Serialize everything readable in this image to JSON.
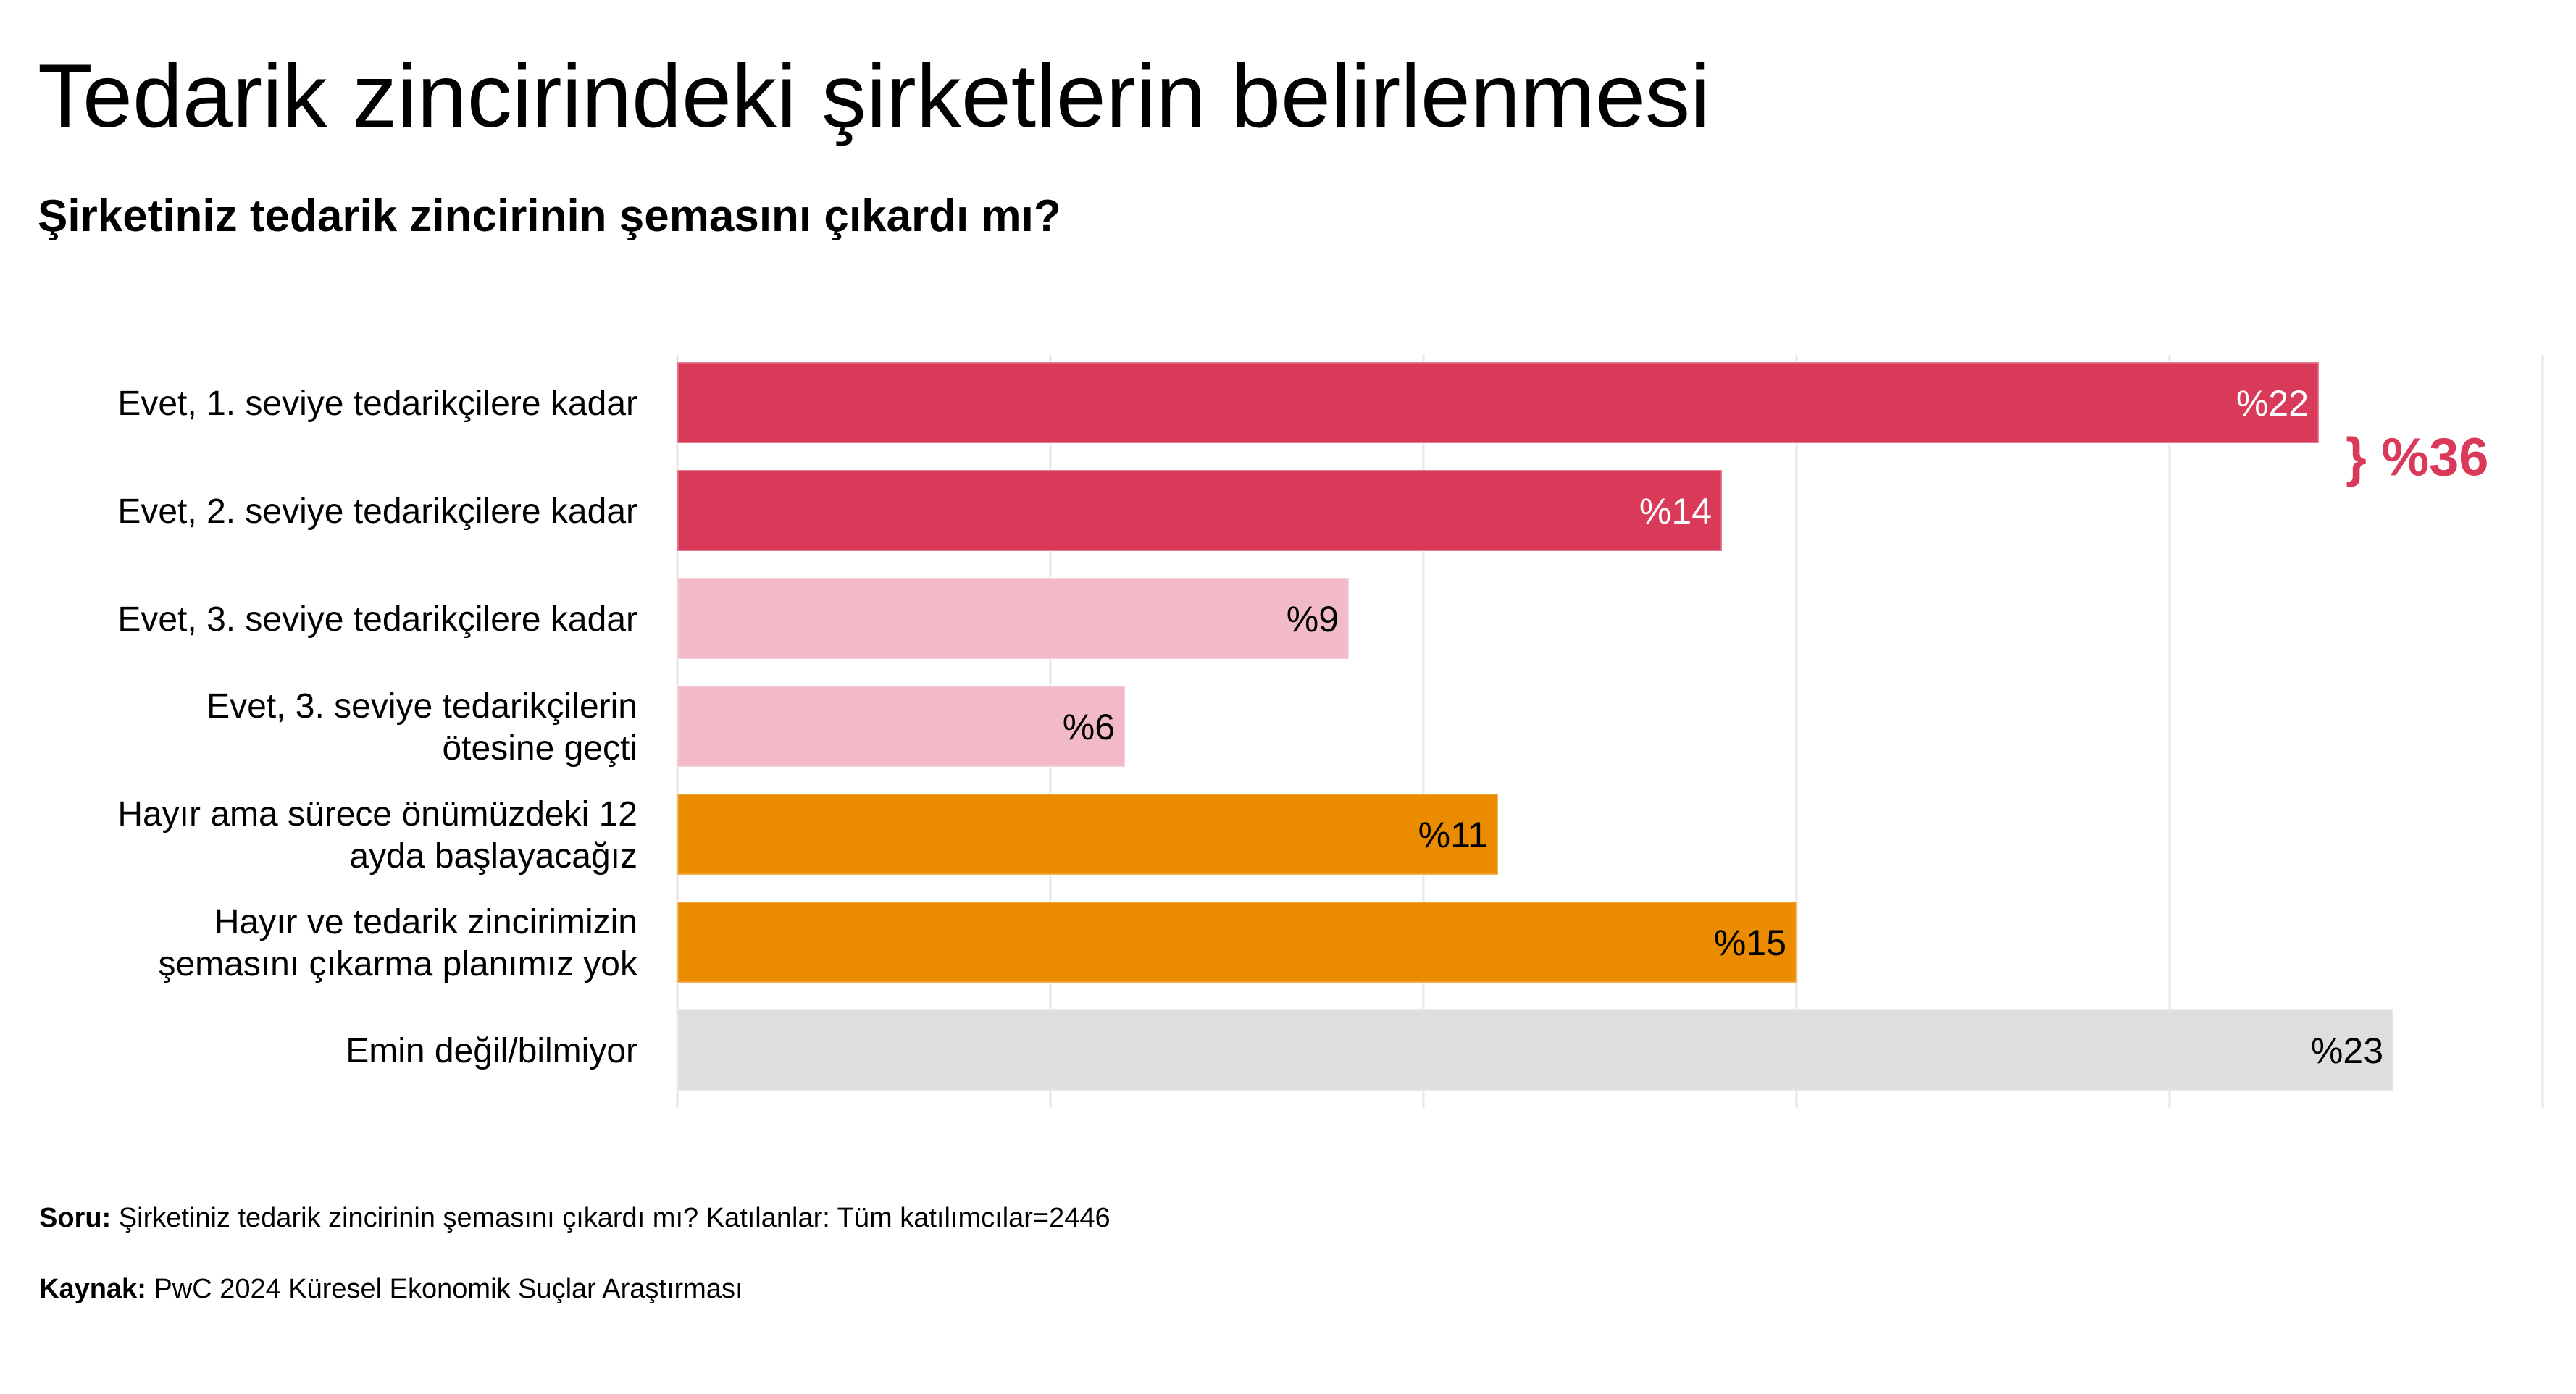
{
  "title": "Tedarik zincirindeki şirketlerin belirlenmesi",
  "subtitle": "Şirketiniz tedarik zincirinin şemasını çıkardı mı?",
  "colors": {
    "dark_pink": "#d93a59",
    "light_pink": "#f2bac6",
    "orange": "#eb8c00",
    "grey": "#dedede",
    "grid": "#e6e6e6",
    "accent_text": "#d93a59"
  },
  "chart_data": {
    "type": "bar",
    "orientation": "horizontal",
    "categories": [
      [
        "Evet, 1. seviye tedarikçilere kadar"
      ],
      [
        "Evet, 2. seviye tedarikçilere kadar"
      ],
      [
        "Evet, 3. seviye tedarikçilere kadar"
      ],
      [
        "Evet, 3. seviye tedarikçilerin",
        "ötesine geçti"
      ],
      [
        "Hayır ama sürece önümüzdeki 12",
        "ayda başlayacağız"
      ],
      [
        "Hayır ve tedarik zincirimizin",
        "şemasını çıkarma planımız yok"
      ],
      [
        "Emin değil/bilmiyor"
      ]
    ],
    "values": [
      22,
      14,
      9,
      6,
      11,
      15,
      23
    ],
    "value_labels": [
      "%22",
      "%14",
      "%9",
      "%6",
      "%11",
      "%15",
      "%23"
    ],
    "bar_colors": [
      "dark_pink",
      "dark_pink",
      "light_pink",
      "light_pink",
      "orange",
      "orange",
      "grey"
    ],
    "label_colors": [
      "#ffffff",
      "#ffffff",
      "#000000",
      "#000000",
      "#000000",
      "#000000",
      "#000000"
    ],
    "xlim": [
      0,
      25
    ],
    "grid_step": 5,
    "grid": true,
    "group_annotation": {
      "text": "} %36",
      "rows": [
        0,
        1
      ]
    }
  },
  "footnotes": {
    "question_label": "Soru:",
    "question_text": " Şirketiniz tedarik zincirinin şemasını çıkardı mı? Katılanlar: Tüm katılımcılar=2446",
    "source_label": "Kaynak:",
    "source_text": " PwC 2024 Küresel Ekonomik Suçlar Araştırması"
  }
}
